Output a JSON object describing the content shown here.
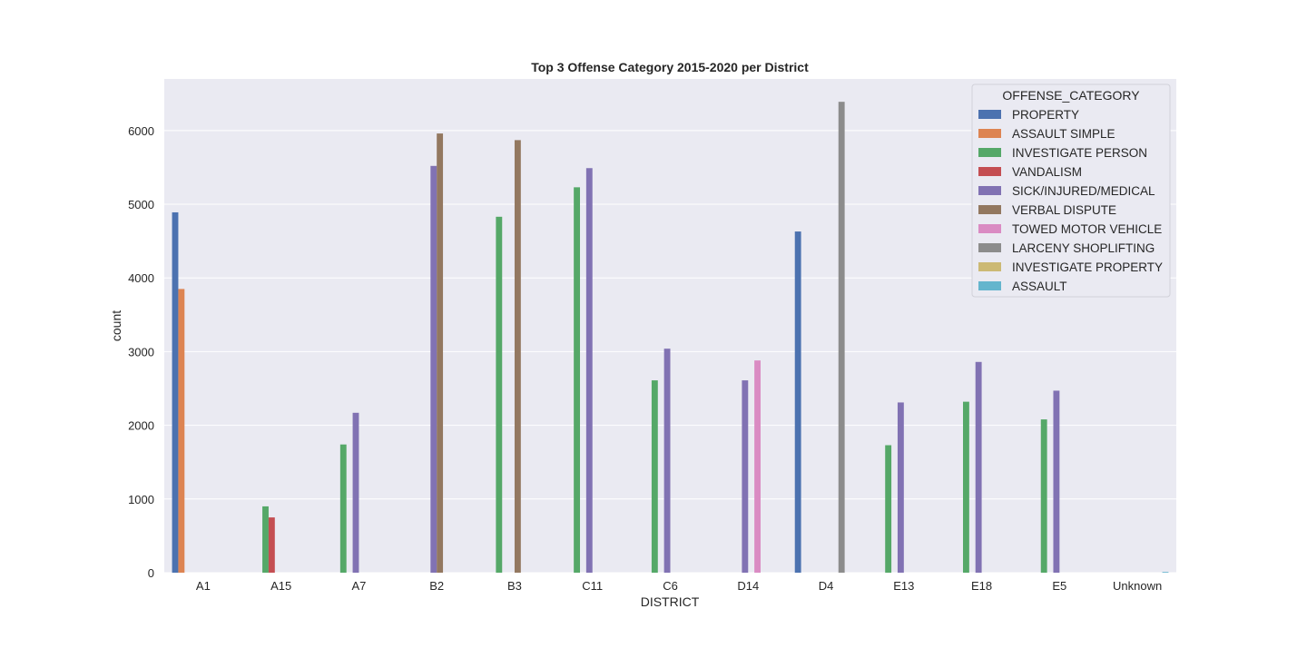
{
  "chart_data": {
    "type": "bar",
    "title": "Top 3 Offense Category 2015-2020 per District",
    "xlabel": "DISTRICT",
    "ylabel": "count",
    "ylim": [
      0,
      6700
    ],
    "yticks": [
      0,
      1000,
      2000,
      3000,
      4000,
      5000,
      6000
    ],
    "grid": true,
    "legend": {
      "title": "OFFENSE_CATEGORY",
      "placement": "top-right"
    },
    "categories": [
      "A1",
      "A15",
      "A7",
      "B2",
      "B3",
      "C11",
      "C6",
      "D14",
      "D4",
      "E13",
      "E18",
      "E5",
      "Unknown"
    ],
    "series": [
      {
        "name": "PROPERTY",
        "color": "#4c72b0",
        "values": [
          4890,
          0,
          0,
          0,
          0,
          0,
          0,
          0,
          4630,
          0,
          0,
          0,
          0
        ]
      },
      {
        "name": "ASSAULT SIMPLE",
        "color": "#dd8452",
        "values": [
          3850,
          0,
          0,
          0,
          0,
          0,
          0,
          0,
          0,
          0,
          0,
          0,
          0
        ]
      },
      {
        "name": "INVESTIGATE PERSON",
        "color": "#55a868",
        "values": [
          0,
          900,
          1740,
          0,
          4830,
          5230,
          2610,
          0,
          0,
          1730,
          2320,
          2080,
          0
        ]
      },
      {
        "name": "VANDALISM",
        "color": "#c44e52",
        "values": [
          0,
          750,
          0,
          0,
          0,
          0,
          0,
          0,
          0,
          0,
          0,
          0,
          0
        ]
      },
      {
        "name": "SICK/INJURED/MEDICAL",
        "color": "#8172b3",
        "values": [
          0,
          0,
          2170,
          5520,
          0,
          5490,
          3040,
          2610,
          0,
          2310,
          2860,
          2470,
          0
        ]
      },
      {
        "name": "VERBAL DISPUTE",
        "color": "#937860",
        "values": [
          0,
          0,
          0,
          5960,
          5870,
          0,
          0,
          0,
          0,
          0,
          0,
          0,
          0
        ]
      },
      {
        "name": "TOWED MOTOR VEHICLE",
        "color": "#da8bc3",
        "values": [
          0,
          0,
          0,
          0,
          0,
          0,
          0,
          2880,
          0,
          0,
          0,
          0,
          0
        ]
      },
      {
        "name": "LARCENY SHOPLIFTING",
        "color": "#8c8c8c",
        "values": [
          0,
          0,
          0,
          0,
          0,
          0,
          0,
          0,
          6390,
          0,
          0,
          0,
          0
        ]
      },
      {
        "name": "INVESTIGATE PROPERTY",
        "color": "#ccb974",
        "values": [
          0,
          0,
          0,
          0,
          0,
          0,
          0,
          0,
          0,
          0,
          0,
          0,
          0
        ]
      },
      {
        "name": "ASSAULT",
        "color": "#64b5cd",
        "values": [
          0,
          0,
          0,
          0,
          0,
          0,
          0,
          0,
          0,
          0,
          0,
          0,
          10
        ]
      }
    ],
    "colors": {
      "plot_background": "#eaeaf2",
      "grid": "#ffffff",
      "text": "#262626"
    }
  }
}
